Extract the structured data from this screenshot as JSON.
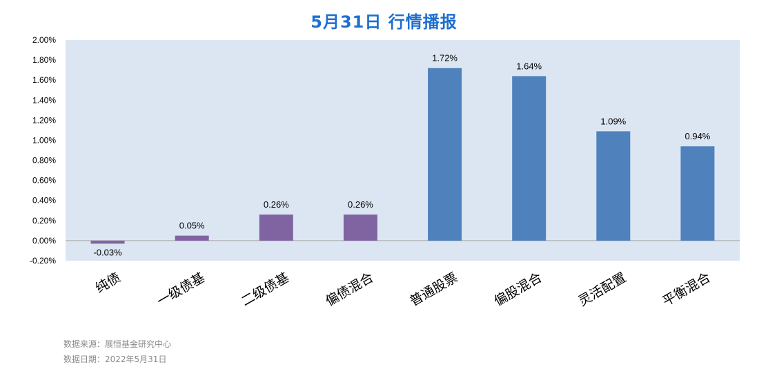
{
  "chart_data": {
    "type": "bar",
    "title": "5月31日  行情播报",
    "categories": [
      "纯债",
      "一级债基",
      "二级债基",
      "偏债混合",
      "普通股票",
      "偏股混合",
      "灵活配置",
      "平衡混合"
    ],
    "values": [
      -0.03,
      0.05,
      0.26,
      0.26,
      1.72,
      1.64,
      1.09,
      0.94
    ],
    "data_labels": [
      "-0.03%",
      "0.05%",
      "0.26%",
      "0.26%",
      "1.72%",
      "1.64%",
      "1.09%",
      "0.94%"
    ],
    "yticks": [
      "2.00%",
      "1.80%",
      "1.60%",
      "1.40%",
      "1.20%",
      "1.00%",
      "0.80%",
      "0.60%",
      "0.40%",
      "0.20%",
      "0.00%",
      "-0.20%"
    ],
    "ylim": [
      -0.2,
      2.0
    ],
    "xlabel": "",
    "ylabel": "",
    "grid": false,
    "colors": {
      "bond_group": "#8064a2",
      "equity_group": "#4f81bd",
      "plot_background": "#dce6f2",
      "title": "#1f6fcf"
    },
    "bar_color_groups": [
      "bond_group",
      "bond_group",
      "bond_group",
      "bond_group",
      "equity_group",
      "equity_group",
      "equity_group",
      "equity_group"
    ]
  },
  "footer": {
    "source": "数据来源：展恒基金研究中心",
    "date": "数据日期：2022年5月31日"
  }
}
